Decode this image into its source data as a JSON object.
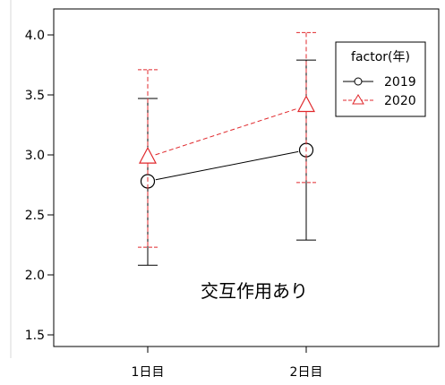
{
  "chart_data": {
    "type": "line",
    "title": "",
    "xlabel": "",
    "ylabel": "",
    "categories": [
      "1日目",
      "2日目"
    ],
    "ylim": [
      1.4,
      4.25
    ],
    "y_ticks": [
      1.5,
      2.0,
      2.5,
      3.0,
      3.5,
      4.0
    ],
    "y_tick_labels": [
      "1.5",
      "2.0",
      "2.5",
      "3.0",
      "3.5",
      "4.0"
    ],
    "grid": false,
    "legend": {
      "title": "factor(年)",
      "placement": "top-right"
    },
    "annotation": "交互作用あり",
    "series": [
      {
        "name": "2019",
        "values": [
          2.78,
          3.04
        ],
        "error_low": [
          2.08,
          2.29
        ],
        "error_high": [
          3.47,
          3.79
        ],
        "color": "#000000",
        "marker": "circle",
        "line_style": "solid"
      },
      {
        "name": "2020",
        "values": [
          2.98,
          3.41
        ],
        "error_low": [
          2.23,
          2.77
        ],
        "error_high": [
          3.71,
          4.02
        ],
        "color": "#e0282c",
        "marker": "triangle",
        "line_style": "dashed"
      }
    ]
  }
}
